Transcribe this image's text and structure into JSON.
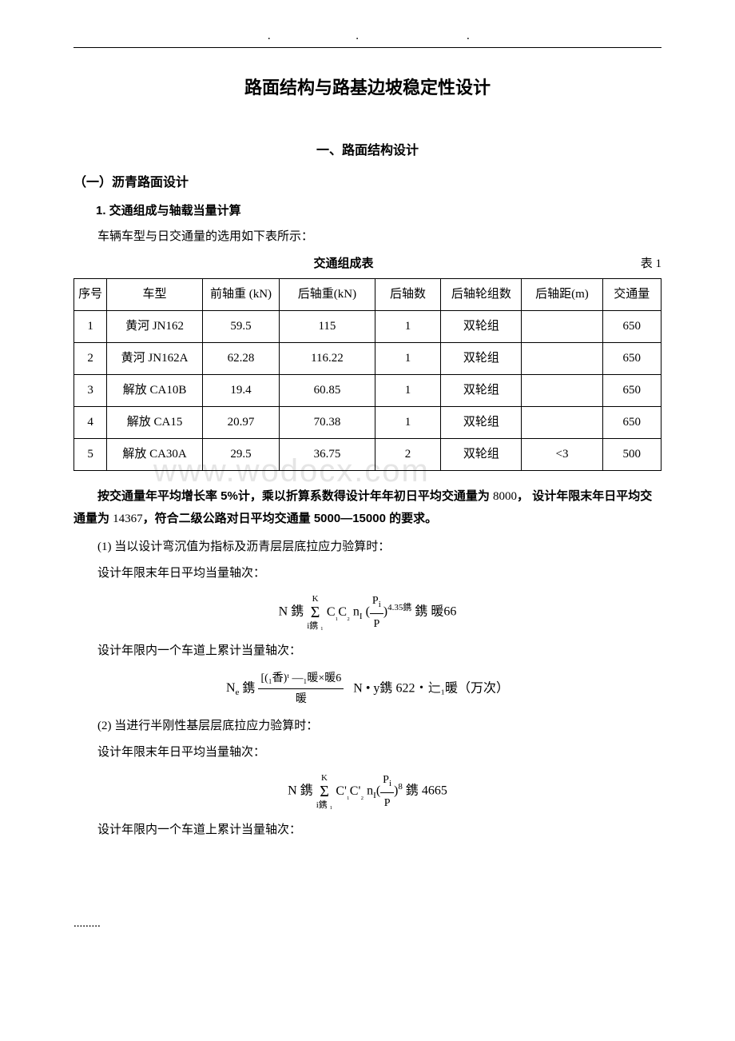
{
  "page": {
    "title": "路面结构与路基边坡稳定性设计",
    "section1_title": "一、路面结构设计",
    "subsection1_title": "（一）沥青路面设计",
    "subsub1_title": "1. 交通组成与轴载当量计算",
    "intro_text": "车辆车型与日交通量的选用如下表所示：",
    "watermark": "www.wodocx.com"
  },
  "table": {
    "caption": "交通组成表",
    "caption_right": "表 1",
    "columns": [
      "序号",
      "车型",
      "前轴重 (kN)",
      "后轴重(kN)",
      "后轴数",
      "后轴轮组数",
      "后轴距(m)",
      "交通量"
    ],
    "rows": [
      [
        "1",
        "黄河 JN162",
        "59.5",
        "115",
        "1",
        "双轮组",
        "",
        "650"
      ],
      [
        "2",
        "黄河 JN162A",
        "62.28",
        "116.22",
        "1",
        "双轮组",
        "",
        "650"
      ],
      [
        "3",
        "解放 CA10B",
        "19.4",
        "60.85",
        "1",
        "双轮组",
        "",
        "650"
      ],
      [
        "4",
        "解放 CA15",
        "20.97",
        "70.38",
        "1",
        "双轮组",
        "",
        "650"
      ],
      [
        "5",
        "解放 CA30A",
        "29.5",
        "36.75",
        "2",
        "双轮组",
        "<3",
        "500"
      ]
    ]
  },
  "paragraphs": {
    "para1_prefix": "按交通量年平均增长率 5%计，乘以折算系数得设计年年初日平均交通量为 ",
    "para1_val1": "8000",
    "para1_mid": "， 设计年限末年日平均交通量为 ",
    "para1_val2": "14367",
    "para1_suffix": "，符合二级公路对日平均交通量 5000—15000 的要求。",
    "item1": "(1) 当以设计弯沉值为指标及沥青层层底拉应力验算时：",
    "line1": "设计年限末年日平均当量轴次：",
    "line2": "设计年限内一个车道上累计当量轴次：",
    "item2": "(2) 当进行半刚性基层层底拉应力验算时：",
    "line3": "设计年限末年日平均当量轴次：",
    "line4": "设计年限内一个车道上累计当量轴次："
  },
  "formulas": {
    "f1": {
      "lhs": "N",
      "eq_garble": "鎸",
      "sum_up": "K",
      "sum_lo": "i鎸 ₁",
      "C1": "C",
      "C1sub": "₁",
      "C2": "C",
      "C2sub": "₂",
      "n": "n",
      "nsub": "I",
      "frac_num": "P",
      "frac_num_sub": "i",
      "frac_den": "P",
      "exp": "4.35",
      "exp_garble": "鎸",
      "rhs_garble": "鎸  暖66"
    },
    "f2": {
      "lhs": "N",
      "lhs_sub": "e",
      "eq_garble": "鎸",
      "frac_num": "[(₁香)ᵗ —₁暖×暖6",
      "frac_den": "暖",
      "mid": "N • y鎸",
      "tail": "622‧辷₁暖（万次）"
    },
    "f3": {
      "lhs": "N",
      "eq_garble": "鎸",
      "sum_up": "K",
      "sum_lo": "i鎸 ₁",
      "C1": "C'",
      "C1sub": "₁",
      "C2": "C'",
      "C2sub": "₂",
      "n": "n",
      "nsub": "I",
      "frac_num": "P",
      "frac_num_sub": "i",
      "frac_den": "P",
      "exp": "8",
      "tail": "鎸 4665"
    }
  },
  "footer": "........."
}
